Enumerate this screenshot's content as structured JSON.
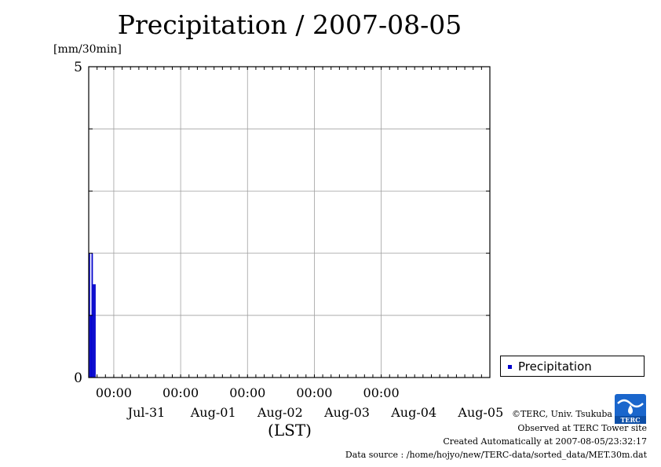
{
  "chart_data": {
    "type": "bar",
    "title": "Precipitation / 2007-08-05",
    "ylabel": "[mm/30min]",
    "xlabel": "(LST)",
    "ylim": [
      0,
      5
    ],
    "yticks": [
      "0",
      "5"
    ],
    "x_time_ticks": [
      "00:00",
      "00:00",
      "00:00",
      "00:00",
      "00:00"
    ],
    "x_date_labels": [
      "Jul-31",
      "Aug-01",
      "Aug-02",
      "Aug-03",
      "Aug-04",
      "Aug-05"
    ],
    "grid": true,
    "legend_position": "bottom-right",
    "series": [
      {
        "name": "Precipitation",
        "color": "#0000cc",
        "x": [
          "07-30 15:30",
          "07-30 16:00",
          "07-30 16:30",
          "07-30 17:00",
          "07-30 17:30"
        ],
        "values": [
          2.0,
          1.0,
          2.0,
          1.5,
          1.5
        ]
      }
    ]
  },
  "credits": {
    "copyright": "©TERC, Univ. Tsukuba",
    "site": "Observed at TERC Tower site",
    "created": "Created Automatically at 2007-08-05/23:32:17",
    "source": "Data source : /home/hojyo/new/TERC-data/sorted_data/MET.30m.dat"
  },
  "logo": {
    "text": "TERC",
    "color": "#1a66cc"
  }
}
